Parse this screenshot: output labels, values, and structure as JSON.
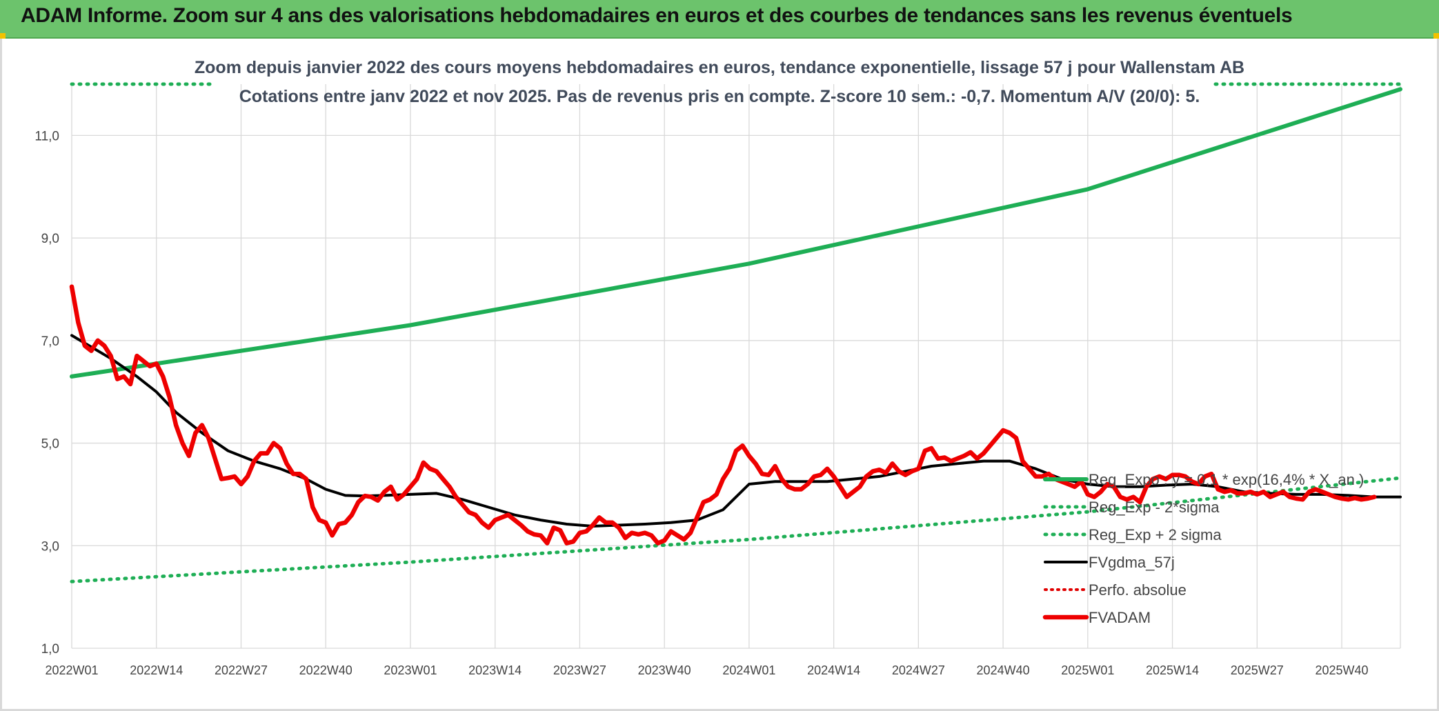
{
  "header": {
    "title": "ADAM Informe. Zoom sur 4 ans des valorisations hebdomadaires en euros et des courbes de tendances sans les revenus éventuels"
  },
  "chart_data": {
    "type": "line",
    "title": "Zoom depuis janvier 2022 des cours moyens hebdomadaires en euros, tendance exponentielle, lissage 57 j pour Wallenstam AB",
    "subtitle": "Cotations entre janv 2022 et nov 2025. Pas de revenus pris en compte. Z-score 10 sem.: -0,7. Momentum A/V (20/0): 5.",
    "xlabel": "",
    "ylabel": "",
    "ylim": [
      1.0,
      12.0
    ],
    "y_ticks": [
      "1,0",
      "3,0",
      "5,0",
      "7,0",
      "9,0",
      "11,0"
    ],
    "x_ticks": [
      "2022W01",
      "2022W14",
      "2022W27",
      "2022W40",
      "2023W01",
      "2023W14",
      "2023W27",
      "2023W40",
      "2024W01",
      "2024W14",
      "2024W27",
      "2024W40",
      "2025W01",
      "2025W14",
      "2025W27",
      "2025W40"
    ],
    "grid": true,
    "legend_position": "right-bottom",
    "colors": {
      "reg_expo": "#1eae55",
      "sigma": "#1eae55",
      "fvgdma": "#000000",
      "perfo": "#e00000",
      "fvadam": "#ee0000"
    },
    "series": [
      {
        "name": "Reg_Expo : y = 0,1 * exp(16,4% * X_an )",
        "style": "solid",
        "points": [
          [
            0,
            6.3
          ],
          [
            52,
            7.3
          ],
          [
            104,
            8.5
          ],
          [
            156,
            9.95
          ],
          [
            204,
            11.9
          ]
        ]
      },
      {
        "name": "Reg_Exp - 2*sigma",
        "style": "dotted",
        "points": [
          [
            0,
            2.3
          ],
          [
            52,
            2.68
          ],
          [
            104,
            3.12
          ],
          [
            156,
            3.66
          ],
          [
            204,
            4.32
          ]
        ]
      },
      {
        "name": "Reg_Exp + 2 sigma",
        "style": "dotted",
        "points": [
          [
            0,
            12.0
          ],
          [
            22,
            12.0
          ]
        ]
      },
      {
        "name": "FVgdma_57j",
        "style": "solid",
        "points": [
          [
            0,
            7.1
          ],
          [
            6,
            6.65
          ],
          [
            10,
            6.3
          ],
          [
            13,
            6.0
          ],
          [
            16,
            5.6
          ],
          [
            20,
            5.2
          ],
          [
            24,
            4.85
          ],
          [
            28,
            4.65
          ],
          [
            32,
            4.5
          ],
          [
            36,
            4.3
          ],
          [
            39,
            4.1
          ],
          [
            42,
            3.98
          ],
          [
            45,
            3.97
          ],
          [
            48,
            3.98
          ],
          [
            52,
            4.0
          ],
          [
            56,
            4.02
          ],
          [
            60,
            3.9
          ],
          [
            64,
            3.75
          ],
          [
            68,
            3.6
          ],
          [
            72,
            3.5
          ],
          [
            76,
            3.42
          ],
          [
            80,
            3.38
          ],
          [
            84,
            3.4
          ],
          [
            88,
            3.42
          ],
          [
            92,
            3.45
          ],
          [
            96,
            3.5
          ],
          [
            100,
            3.7
          ],
          [
            104,
            4.2
          ],
          [
            108,
            4.25
          ],
          [
            112,
            4.25
          ],
          [
            116,
            4.25
          ],
          [
            120,
            4.3
          ],
          [
            124,
            4.35
          ],
          [
            128,
            4.45
          ],
          [
            132,
            4.55
          ],
          [
            136,
            4.6
          ],
          [
            140,
            4.65
          ],
          [
            144,
            4.65
          ],
          [
            148,
            4.5
          ],
          [
            152,
            4.3
          ],
          [
            156,
            4.2
          ],
          [
            160,
            4.15
          ],
          [
            164,
            4.15
          ],
          [
            168,
            4.18
          ],
          [
            172,
            4.2
          ],
          [
            176,
            4.15
          ],
          [
            180,
            4.05
          ],
          [
            184,
            4.02
          ],
          [
            188,
            4.0
          ],
          [
            192,
            4.0
          ],
          [
            196,
            3.98
          ],
          [
            200,
            3.95
          ],
          [
            204,
            3.95
          ]
        ]
      },
      {
        "name": "Perfo. absolue",
        "style": "dotted",
        "points": []
      },
      {
        "name": "FVADAM",
        "style": "solid",
        "points": [
          [
            0,
            8.05
          ],
          [
            1,
            7.35
          ],
          [
            2,
            6.9
          ],
          [
            3,
            6.8
          ],
          [
            4,
            7.0
          ],
          [
            5,
            6.9
          ],
          [
            6,
            6.7
          ],
          [
            7,
            6.25
          ],
          [
            8,
            6.3
          ],
          [
            9,
            6.15
          ],
          [
            10,
            6.7
          ],
          [
            11,
            6.6
          ],
          [
            12,
            6.5
          ],
          [
            13,
            6.55
          ],
          [
            14,
            6.3
          ],
          [
            15,
            5.9
          ],
          [
            16,
            5.35
          ],
          [
            17,
            5.0
          ],
          [
            18,
            4.75
          ],
          [
            19,
            5.2
          ],
          [
            20,
            5.35
          ],
          [
            21,
            5.1
          ],
          [
            22,
            4.7
          ],
          [
            23,
            4.3
          ],
          [
            24,
            4.32
          ],
          [
            25,
            4.35
          ],
          [
            26,
            4.2
          ],
          [
            27,
            4.35
          ],
          [
            28,
            4.65
          ],
          [
            29,
            4.8
          ],
          [
            30,
            4.8
          ],
          [
            31,
            5.0
          ],
          [
            32,
            4.9
          ],
          [
            33,
            4.6
          ],
          [
            34,
            4.4
          ],
          [
            35,
            4.4
          ],
          [
            36,
            4.3
          ],
          [
            37,
            3.75
          ],
          [
            38,
            3.5
          ],
          [
            39,
            3.45
          ],
          [
            40,
            3.2
          ],
          [
            41,
            3.42
          ],
          [
            42,
            3.45
          ],
          [
            43,
            3.6
          ],
          [
            44,
            3.85
          ],
          [
            45,
            3.97
          ],
          [
            46,
            3.95
          ],
          [
            47,
            3.88
          ],
          [
            48,
            4.05
          ],
          [
            49,
            4.15
          ],
          [
            50,
            3.9
          ],
          [
            51,
            4.0
          ],
          [
            52,
            4.15
          ],
          [
            53,
            4.3
          ],
          [
            54,
            4.62
          ],
          [
            55,
            4.5
          ],
          [
            56,
            4.45
          ],
          [
            57,
            4.3
          ],
          [
            58,
            4.15
          ],
          [
            59,
            3.95
          ],
          [
            60,
            3.8
          ],
          [
            61,
            3.65
          ],
          [
            62,
            3.6
          ],
          [
            63,
            3.45
          ],
          [
            64,
            3.35
          ],
          [
            65,
            3.5
          ],
          [
            66,
            3.55
          ],
          [
            67,
            3.6
          ],
          [
            68,
            3.5
          ],
          [
            69,
            3.4
          ],
          [
            70,
            3.28
          ],
          [
            71,
            3.22
          ],
          [
            72,
            3.2
          ],
          [
            73,
            3.05
          ],
          [
            74,
            3.35
          ],
          [
            75,
            3.3
          ],
          [
            76,
            3.05
          ],
          [
            77,
            3.08
          ],
          [
            78,
            3.25
          ],
          [
            79,
            3.28
          ],
          [
            80,
            3.4
          ],
          [
            81,
            3.55
          ],
          [
            82,
            3.45
          ],
          [
            83,
            3.45
          ],
          [
            84,
            3.35
          ],
          [
            85,
            3.15
          ],
          [
            86,
            3.25
          ],
          [
            87,
            3.22
          ],
          [
            88,
            3.25
          ],
          [
            89,
            3.2
          ],
          [
            90,
            3.05
          ],
          [
            91,
            3.1
          ],
          [
            92,
            3.28
          ],
          [
            93,
            3.2
          ],
          [
            94,
            3.12
          ],
          [
            95,
            3.25
          ],
          [
            96,
            3.55
          ],
          [
            97,
            3.85
          ],
          [
            98,
            3.9
          ],
          [
            99,
            4.0
          ],
          [
            100,
            4.3
          ],
          [
            101,
            4.5
          ],
          [
            102,
            4.85
          ],
          [
            103,
            4.95
          ],
          [
            104,
            4.75
          ],
          [
            105,
            4.6
          ],
          [
            106,
            4.4
          ],
          [
            107,
            4.38
          ],
          [
            108,
            4.55
          ],
          [
            109,
            4.3
          ],
          [
            110,
            4.15
          ],
          [
            111,
            4.1
          ],
          [
            112,
            4.1
          ],
          [
            113,
            4.2
          ],
          [
            114,
            4.35
          ],
          [
            115,
            4.38
          ],
          [
            116,
            4.5
          ],
          [
            117,
            4.35
          ],
          [
            118,
            4.15
          ],
          [
            119,
            3.95
          ],
          [
            120,
            4.05
          ],
          [
            121,
            4.15
          ],
          [
            122,
            4.35
          ],
          [
            123,
            4.45
          ],
          [
            124,
            4.48
          ],
          [
            125,
            4.42
          ],
          [
            126,
            4.6
          ],
          [
            127,
            4.45
          ],
          [
            128,
            4.38
          ],
          [
            129,
            4.45
          ],
          [
            130,
            4.5
          ],
          [
            131,
            4.85
          ],
          [
            132,
            4.9
          ],
          [
            133,
            4.7
          ],
          [
            134,
            4.72
          ],
          [
            135,
            4.65
          ],
          [
            136,
            4.7
          ],
          [
            137,
            4.75
          ],
          [
            138,
            4.82
          ],
          [
            139,
            4.7
          ],
          [
            140,
            4.8
          ],
          [
            141,
            4.95
          ],
          [
            142,
            5.1
          ],
          [
            143,
            5.25
          ],
          [
            144,
            5.2
          ],
          [
            145,
            5.1
          ],
          [
            146,
            4.65
          ],
          [
            147,
            4.5
          ],
          [
            148,
            4.35
          ],
          [
            149,
            4.35
          ],
          [
            150,
            4.4
          ],
          [
            151,
            4.3
          ],
          [
            152,
            4.25
          ],
          [
            153,
            4.2
          ],
          [
            154,
            4.15
          ],
          [
            155,
            4.25
          ],
          [
            156,
            4.0
          ],
          [
            157,
            3.95
          ],
          [
            158,
            4.05
          ],
          [
            159,
            4.2
          ],
          [
            160,
            4.15
          ],
          [
            161,
            3.95
          ],
          [
            162,
            3.9
          ],
          [
            163,
            3.95
          ],
          [
            164,
            3.85
          ],
          [
            165,
            4.15
          ],
          [
            166,
            4.3
          ],
          [
            167,
            4.35
          ],
          [
            168,
            4.3
          ],
          [
            169,
            4.38
          ],
          [
            170,
            4.38
          ],
          [
            171,
            4.35
          ],
          [
            172,
            4.25
          ],
          [
            173,
            4.2
          ],
          [
            174,
            4.35
          ],
          [
            175,
            4.4
          ],
          [
            176,
            4.1
          ],
          [
            177,
            4.05
          ],
          [
            178,
            4.08
          ],
          [
            179,
            4.02
          ],
          [
            180,
            4.02
          ],
          [
            181,
            4.05
          ],
          [
            182,
            4.0
          ],
          [
            183,
            4.05
          ],
          [
            184,
            3.95
          ],
          [
            185,
            4.0
          ],
          [
            186,
            4.05
          ],
          [
            187,
            3.95
          ],
          [
            188,
            3.92
          ],
          [
            189,
            3.9
          ],
          [
            190,
            4.05
          ],
          [
            191,
            4.1
          ],
          [
            192,
            4.05
          ],
          [
            193,
            4.0
          ],
          [
            194,
            3.95
          ],
          [
            195,
            3.92
          ],
          [
            196,
            3.9
          ],
          [
            197,
            3.93
          ],
          [
            198,
            3.9
          ],
          [
            199,
            3.92
          ],
          [
            200,
            3.95
          ]
        ]
      }
    ]
  }
}
